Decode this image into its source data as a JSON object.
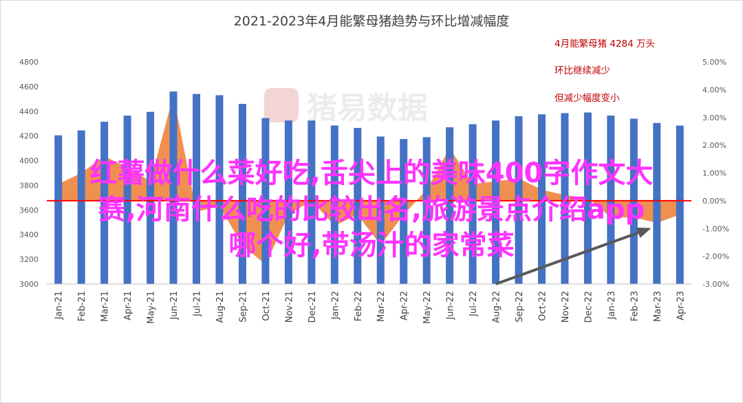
{
  "chart_data": {
    "type": "bar",
    "title": "2021-2023年4月能繁母猪趋势与环比增减幅度",
    "categories": [
      "Jan-21",
      "Feb-21",
      "Mar-21",
      "Apr-21",
      "May-21",
      "Jun-21",
      "Jul-21",
      "Aug-21",
      "Sep-21",
      "Oct-21",
      "Nov-21",
      "Dec-21",
      "Jan-22",
      "Feb-22",
      "Mar-22",
      "Apr-22",
      "May-22",
      "Jun-22",
      "Jul-22",
      "Aug-22",
      "Sep-22",
      "Oct-22",
      "Nov-22",
      "Dec-22",
      "Jan-23",
      "Feb-23",
      "Mar-23",
      "Apr-23"
    ],
    "series": [
      {
        "kind": "bar",
        "axis": "left",
        "color": "#4472c4",
        "values": [
          4205,
          4245,
          4315,
          4365,
          4395,
          4560,
          4540,
          4530,
          4460,
          4345,
          4325,
          4325,
          4285,
          4265,
          4195,
          4175,
          4190,
          4270,
          4295,
          4325,
          4360,
          4375,
          4385,
          4390,
          4365,
          4340,
          4305,
          4284
        ]
      },
      {
        "kind": "area",
        "axis": "right",
        "color": "#ed7d31",
        "values": [
          0.6,
          1.0,
          1.6,
          1.2,
          0.7,
          3.8,
          -0.4,
          -0.2,
          -1.6,
          -2.3,
          -0.5,
          0.0,
          -0.9,
          -0.5,
          -1.6,
          -0.5,
          0.4,
          1.9,
          0.6,
          0.7,
          0.8,
          0.4,
          0.2,
          0.1,
          -0.6,
          -0.6,
          -0.8,
          -0.5
        ]
      }
    ],
    "ylim_left": [
      3000,
      4800
    ],
    "yticks_left": [
      "4800",
      "4600",
      "4400",
      "4200",
      "4000",
      "3800",
      "3600",
      "3400",
      "3200",
      "3000"
    ],
    "ylim_right": [
      -3.0,
      5.0
    ],
    "yticks_right": [
      "5.00%",
      "4.00%",
      "3.00%",
      "2.00%",
      "1.00%",
      "0.00%",
      "-1.00%",
      "-2.00%",
      "-3.00%"
    ],
    "reference_line": {
      "value": 0.0,
      "axis": "right",
      "color": "#ff0000"
    },
    "arrow": {
      "from": "Aug-22",
      "to": "Mar-23",
      "color": "#595959"
    },
    "grid": false,
    "legend": "none",
    "annotations": [
      "4月能繁母猪 4284 万头",
      "环比继续减少",
      "但减少幅度变小"
    ]
  },
  "watermark": "猪易数据",
  "overlay_text": [
    "红薯做什么菜好吃,舌尖上的美味400字作文大",
    "赛,河南什么吃的比较出名,旅游景点介绍app",
    "哪个好,带汤汁的家常菜"
  ]
}
